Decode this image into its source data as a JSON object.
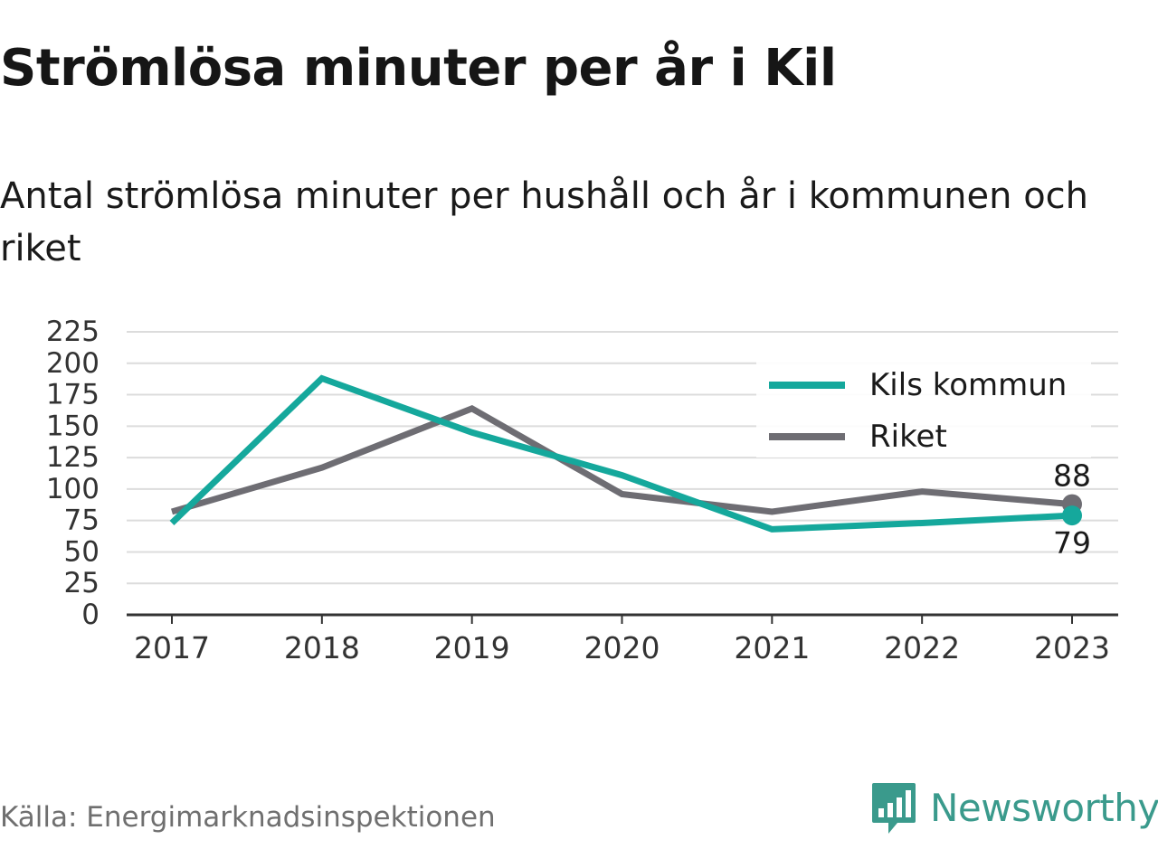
{
  "title": "Strömlösa minuter per år i Kil",
  "subtitle": "Antal strömlösa minuter per hushåll och år i kommunen och riket",
  "source": "Källa: Energimarknadsinspektionen",
  "brand": {
    "name": "Newsworthy",
    "icon": "newsworthy-logo-icon",
    "color": "#3a9a8c"
  },
  "chart_data": {
    "type": "line",
    "title": "",
    "xlabel": "",
    "ylabel": "",
    "categories": [
      "2017",
      "2018",
      "2019",
      "2020",
      "2021",
      "2022",
      "2023"
    ],
    "ylim": [
      0,
      225
    ],
    "yticks": [
      0,
      25,
      50,
      75,
      100,
      125,
      150,
      175,
      200,
      225
    ],
    "grid": true,
    "legend_position": "top-right",
    "series": [
      {
        "name": "Kils kommun",
        "color": "#15a89c",
        "values": [
          73,
          188,
          145,
          111,
          68,
          73,
          79
        ],
        "end_label": "79"
      },
      {
        "name": "Riket",
        "color": "#6e6d73",
        "values": [
          82,
          117,
          164,
          96,
          82,
          98,
          88
        ],
        "end_label": "88"
      }
    ]
  }
}
